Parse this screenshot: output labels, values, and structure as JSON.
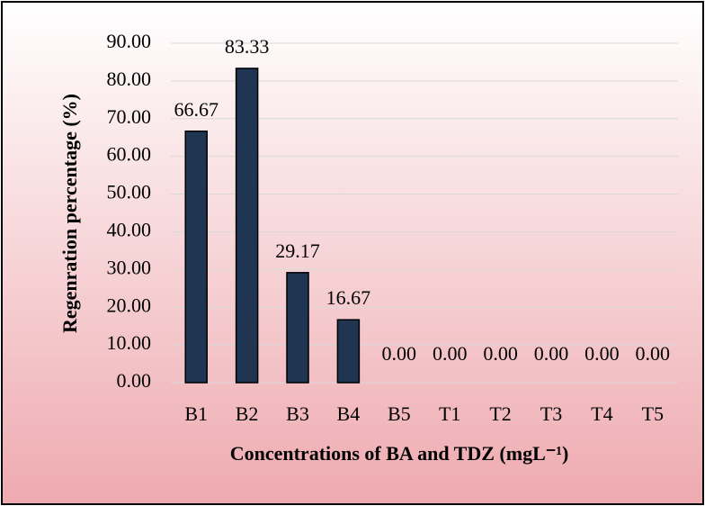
{
  "chart_data": {
    "type": "bar",
    "x_label": "Concentrations of BA and TDZ (mgL⁻¹)",
    "y_label": "Regenration percentage (%)",
    "categories": [
      "B1",
      "B2",
      "B3",
      "B4",
      "B5",
      "T1",
      "T2",
      "T3",
      "T4",
      "T5"
    ],
    "values": [
      66.67,
      83.33,
      29.17,
      16.67,
      0,
      0,
      0,
      0,
      0,
      0
    ],
    "value_labels": [
      "66.67",
      "83.33",
      "29.17",
      "16.67",
      "0.00",
      "0.00",
      "0.00",
      "0.00",
      "0.00",
      "0.00"
    ],
    "color": "#1f3552",
    "ylim": [
      0,
      90
    ],
    "yticks": [
      {
        "value": 0,
        "label": "0.00"
      },
      {
        "value": 10,
        "label": "10.00"
      },
      {
        "value": 20,
        "label": "20.00"
      },
      {
        "value": 30,
        "label": "30.00"
      },
      {
        "value": 40,
        "label": "40.00"
      },
      {
        "value": 50,
        "label": "50.00"
      },
      {
        "value": 60,
        "label": "60.00"
      },
      {
        "value": 70,
        "label": "70.00"
      },
      {
        "value": 80,
        "label": "80.00"
      },
      {
        "value": 90,
        "label": "90.00"
      }
    ],
    "grid": true
  }
}
